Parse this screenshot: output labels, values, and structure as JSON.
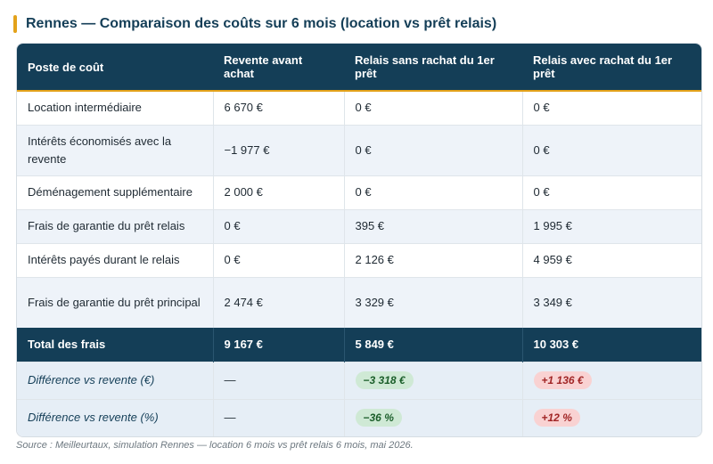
{
  "title": "Rennes — Comparaison des coûts sur 6 mois (location vs prêt relais)",
  "table": {
    "headers": [
      "Poste de coût",
      "Revente avant achat",
      "Relais sans rachat du 1er prêt",
      "Relais avec rachat du 1er prêt"
    ],
    "rows": [
      [
        "Location intermédiaire",
        "6 670 €",
        "0 €",
        "0 €"
      ],
      [
        "Intérêts économisés avec la revente",
        "−1 977 €",
        "0 €",
        "0 €"
      ],
      [
        "Déménagement supplémentaire",
        "2 000 €",
        "0 €",
        "0 €"
      ],
      [
        "Frais de garantie du prêt relais",
        "0 €",
        "395 €",
        "1 995 €"
      ],
      [
        "Intérêts payés durant le relais",
        "0 €",
        "2 126 €",
        "4 959 €"
      ],
      [
        "Frais de garantie du prêt principal",
        "2 474 €",
        "3 329 €",
        "3 349 €"
      ]
    ],
    "total": [
      "Total des frais",
      "9 167 €",
      "5 849 €",
      "10 303 €"
    ],
    "diff_eur": [
      "Différence vs revente (€)",
      "—",
      "−3 318 €",
      "+1 136 €"
    ],
    "diff_pct": [
      "Différence vs revente (%)",
      "—",
      "−36 %",
      "+12 %"
    ]
  },
  "source": "Source : Meilleurtaux, simulation Rennes — location 6 mois vs prêt relais 6 mois, mai 2026.",
  "colors": {
    "header_bg": "#143e57",
    "accent": "#e3a21a",
    "row_alt": "#eef3f9",
    "saving_pill": "#cfe9d5",
    "extra_cost_pill": "#f9d2d2"
  }
}
